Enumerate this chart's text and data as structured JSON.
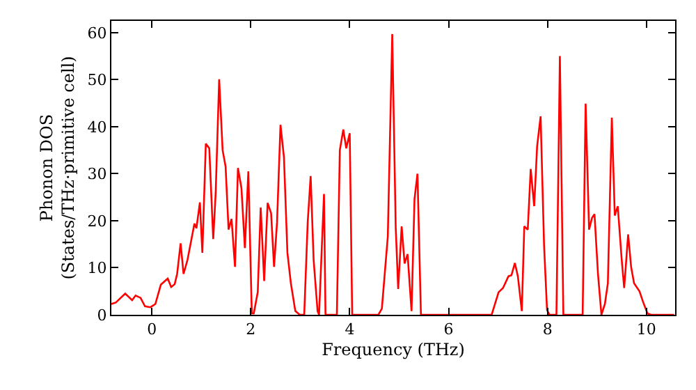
{
  "chart_data": {
    "type": "line",
    "xlabel": "Frequency (THz)",
    "ylabel": "Phonon DOS\n(States/THz·primitive cell)",
    "series": [
      {
        "color": "#ff0000",
        "x": [
          -0.82,
          -0.73,
          -0.54,
          -0.4,
          -0.33,
          -0.23,
          -0.14,
          -0.03,
          0.07,
          0.18,
          0.32,
          0.39,
          0.46,
          0.51,
          0.58,
          0.64,
          0.72,
          0.86,
          0.9,
          0.97,
          1.02,
          1.09,
          1.16,
          1.24,
          1.29,
          1.36,
          1.43,
          1.49,
          1.55,
          1.61,
          1.68,
          1.74,
          1.81,
          1.88,
          1.95,
          2.02,
          2.06,
          2.14,
          2.2,
          2.27,
          2.34,
          2.41,
          2.47,
          2.53,
          2.6,
          2.67,
          2.74,
          2.81,
          2.9,
          2.99,
          3.08,
          3.15,
          3.21,
          3.27,
          3.35,
          3.38,
          3.48,
          3.51,
          3.74,
          3.8,
          3.87,
          3.93,
          4.0,
          4.05,
          4.58,
          4.65,
          4.77,
          4.86,
          4.93,
          4.98,
          5.05,
          5.11,
          5.17,
          5.25,
          5.31,
          5.37,
          5.44,
          6.87,
          7.01,
          7.1,
          7.21,
          7.27,
          7.34,
          7.4,
          7.48,
          7.53,
          7.6,
          7.66,
          7.73,
          7.79,
          7.86,
          7.93,
          7.99,
          8.04,
          8.18,
          8.25,
          8.32,
          8.71,
          8.77,
          8.84,
          8.9,
          8.95,
          9.02,
          9.09,
          9.16,
          9.22,
          9.3,
          9.36,
          9.42,
          9.5,
          9.55,
          9.63,
          9.69,
          9.75,
          9.86,
          9.93,
          10.02,
          10.09,
          10.56
        ],
        "values": [
          2.3,
          2.6,
          4.5,
          3.1,
          4.1,
          3.6,
          1.8,
          1.6,
          2.3,
          6.4,
          7.7,
          5.9,
          6.5,
          8.7,
          15.2,
          8.7,
          11.7,
          19.4,
          18.4,
          23.9,
          13.2,
          36.4,
          35.4,
          16.1,
          26.0,
          50.1,
          35.0,
          31.5,
          18.1,
          20.4,
          10.2,
          31.2,
          27.0,
          14.2,
          30.5,
          0.3,
          0.3,
          4.8,
          22.8,
          7.2,
          23.8,
          21.6,
          10.2,
          19.6,
          40.4,
          33.5,
          13.2,
          6.7,
          0.8,
          0,
          0,
          19.6,
          29.5,
          11.7,
          0.8,
          0,
          25.7,
          0,
          0,
          35.0,
          39.4,
          35.4,
          38.6,
          0,
          0,
          1.3,
          16.6,
          59.7,
          18.6,
          5.5,
          18.8,
          10.9,
          12.9,
          0.8,
          24.6,
          30.0,
          0,
          0,
          4.8,
          5.7,
          8.2,
          8.4,
          11.0,
          8.2,
          0.8,
          18.8,
          18.1,
          31.0,
          23.1,
          35.9,
          42.2,
          14.7,
          1.0,
          0,
          0,
          55.0,
          0,
          0,
          44.9,
          18.1,
          20.6,
          21.4,
          8.7,
          0,
          2.3,
          6.7,
          41.9,
          21.1,
          23.1,
          11.7,
          5.7,
          17.1,
          10.2,
          6.7,
          5.0,
          2.8,
          0.3,
          0,
          0
        ]
      }
    ],
    "xlim": [
      -0.82,
      10.58
    ],
    "ylim": [
      0,
      62.5
    ],
    "xticks": [
      0,
      2,
      4,
      6,
      8,
      10
    ],
    "yticks": [
      0,
      10,
      20,
      30,
      40,
      50,
      60
    ],
    "marker": "none",
    "line_style": "solid"
  }
}
